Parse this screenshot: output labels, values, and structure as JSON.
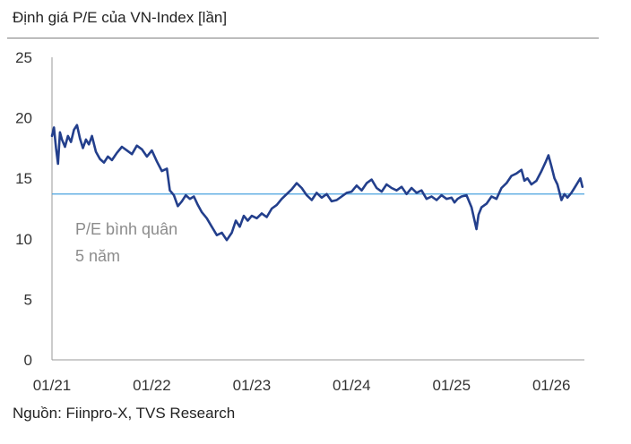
{
  "header": {
    "title": "Định giá P/E của VN-Index [lần]"
  },
  "footer": {
    "source": "Nguồn: Fiinpro-X, TVS Research"
  },
  "chart_data": {
    "type": "line",
    "ylim": [
      0,
      25
    ],
    "yticks": [
      "0",
      "5",
      "10",
      "15",
      "20",
      "25"
    ],
    "xlim": [
      2021.0,
      2026.33
    ],
    "xtick_labels": [
      "01/21",
      "01/22",
      "01/23",
      "01/24",
      "01/25",
      "01/26"
    ],
    "grid": false,
    "annotation": {
      "lines": [
        "P/E bình quân",
        "5 năm"
      ]
    },
    "average_pe": 13.7,
    "colors": {
      "series": "#233f8c",
      "average": "#4aa3df",
      "axis": "#9a9a9a"
    },
    "series": [
      {
        "x": [
          2021.0,
          2021.02,
          2021.04,
          2021.06,
          2021.08,
          2021.1,
          2021.13,
          2021.16,
          2021.19,
          2021.22,
          2021.25,
          2021.28,
          2021.31,
          2021.34,
          2021.37,
          2021.4,
          2021.44,
          2021.48,
          2021.52,
          2021.56,
          2021.6,
          2021.65,
          2021.7,
          2021.75,
          2021.8,
          2021.85,
          2021.9,
          2021.95,
          2022.0,
          2022.05,
          2022.1,
          2022.15,
          2022.18,
          2022.22,
          2022.26,
          2022.3,
          2022.34,
          2022.38,
          2022.42,
          2022.46,
          2022.5,
          2022.55,
          2022.6,
          2022.65,
          2022.7,
          2022.75,
          2022.8,
          2022.84,
          2022.88,
          2022.92,
          2022.96,
          2023.0,
          2023.05,
          2023.1,
          2023.15,
          2023.2,
          2023.25,
          2023.3,
          2023.35,
          2023.4,
          2023.45,
          2023.5,
          2023.55,
          2023.6,
          2023.65,
          2023.7,
          2023.75,
          2023.8,
          2023.85,
          2023.9,
          2023.95,
          2024.0,
          2024.05,
          2024.1,
          2024.15,
          2024.2,
          2024.25,
          2024.3,
          2024.35,
          2024.4,
          2024.45,
          2024.5,
          2024.55,
          2024.6,
          2024.65,
          2024.7,
          2024.75,
          2024.8,
          2024.85,
          2024.9,
          2024.95,
          2025.0,
          2025.03,
          2025.06,
          2025.1,
          2025.15,
          2025.2,
          2025.25,
          2025.27,
          2025.3,
          2025.35,
          2025.4,
          2025.45,
          2025.5,
          2025.55,
          2025.6,
          2025.65,
          2025.7,
          2025.73,
          2025.76,
          2025.8,
          2025.85,
          2025.9,
          2025.94,
          2025.97,
          2026.0,
          2026.03,
          2026.06,
          2026.1,
          2026.13,
          2026.16,
          2026.2,
          2026.23,
          2026.26,
          2026.29,
          2026.31
        ],
        "y": [
          18.5,
          19.2,
          17.5,
          16.2,
          18.8,
          18.2,
          17.6,
          18.5,
          18.0,
          19.0,
          19.4,
          18.3,
          17.5,
          18.2,
          17.8,
          18.5,
          17.2,
          16.6,
          16.3,
          16.8,
          16.5,
          17.1,
          17.6,
          17.3,
          17.0,
          17.7,
          17.4,
          16.8,
          17.3,
          16.4,
          15.6,
          15.8,
          14.0,
          13.6,
          12.7,
          13.1,
          13.6,
          13.3,
          13.5,
          12.8,
          12.2,
          11.7,
          11.0,
          10.3,
          10.5,
          9.9,
          10.5,
          11.5,
          11.0,
          11.9,
          11.5,
          11.9,
          11.7,
          12.1,
          11.8,
          12.5,
          12.8,
          13.3,
          13.7,
          14.1,
          14.6,
          14.2,
          13.6,
          13.2,
          13.8,
          13.4,
          13.7,
          13.1,
          13.2,
          13.5,
          13.8,
          13.9,
          14.4,
          14.0,
          14.6,
          14.9,
          14.2,
          13.9,
          14.5,
          14.2,
          14.0,
          14.3,
          13.7,
          14.2,
          13.8,
          14.0,
          13.3,
          13.5,
          13.2,
          13.6,
          13.3,
          13.4,
          13.0,
          13.3,
          13.5,
          13.6,
          12.6,
          10.8,
          12.0,
          12.6,
          12.9,
          13.5,
          13.3,
          14.2,
          14.6,
          15.2,
          15.4,
          15.7,
          14.8,
          15.0,
          14.5,
          14.8,
          15.6,
          16.3,
          16.9,
          16.0,
          15.0,
          14.5,
          13.2,
          13.7,
          13.4,
          13.8,
          14.2,
          14.6,
          15.0,
          14.3
        ]
      }
    ]
  }
}
